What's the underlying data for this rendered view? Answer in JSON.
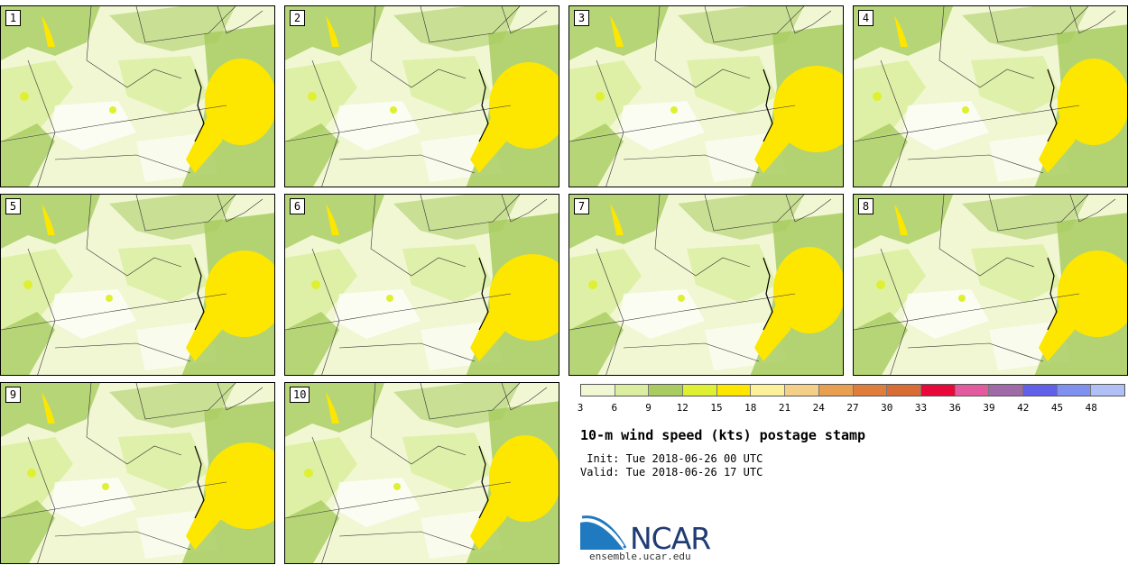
{
  "stamps": [
    {
      "label": "1"
    },
    {
      "label": "2"
    },
    {
      "label": "3"
    },
    {
      "label": "4"
    },
    {
      "label": "5"
    },
    {
      "label": "6"
    },
    {
      "label": "7"
    },
    {
      "label": "8"
    },
    {
      "label": "9"
    },
    {
      "label": "10"
    }
  ],
  "colorbar": {
    "ticks": [
      "3",
      "6",
      "9",
      "12",
      "15",
      "18",
      "21",
      "24",
      "27",
      "30",
      "33",
      "36",
      "39",
      "42",
      "45",
      "48"
    ],
    "colors": [
      "#f1f7d3",
      "#dbeea0",
      "#a8cc60",
      "#dff033",
      "#fde600",
      "#fdf09a",
      "#f4cf88",
      "#e8a050",
      "#e07d3a",
      "#d86c34",
      "#e8083a",
      "#e45aa0",
      "#a06aa8",
      "#6060e8",
      "#7f90f0",
      "#b0c0f6"
    ]
  },
  "caption": {
    "title": "10-m wind speed (kts) postage stamp",
    "init": " Init: Tue 2018-06-26 00 UTC",
    "valid": "Valid: Tue 2018-06-26 17 UTC"
  },
  "logo": {
    "text": "NCAR",
    "url": "ensemble.ucar.edu",
    "colors": {
      "blue": "#1f7ac0",
      "navy": "#1f3c74"
    }
  },
  "map_colors": {
    "light": "#f1f7d3",
    "mid": "#dbeea0",
    "green": "#a8cc60",
    "yellow": "#fde600",
    "lime": "#dff033",
    "white": "#ffffff"
  }
}
